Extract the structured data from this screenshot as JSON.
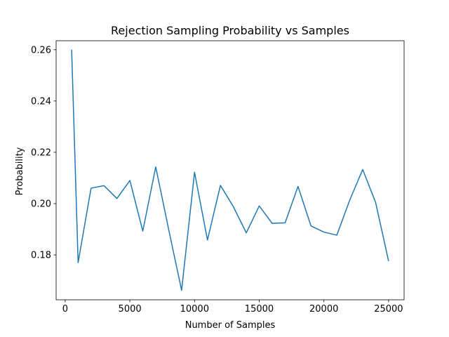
{
  "chart_data": {
    "type": "line",
    "title": "Rejection Sampling Probability vs Samples",
    "xlabel": "Number of Samples",
    "ylabel": "Probability",
    "xlim": [
      -700,
      26200
    ],
    "ylim": [
      0.1625,
      0.2635
    ],
    "xticks": [
      0,
      5000,
      10000,
      15000,
      20000,
      25000
    ],
    "xtick_labels": [
      "0",
      "5000",
      "10000",
      "15000",
      "20000",
      "25000"
    ],
    "yticks": [
      0.18,
      0.2,
      0.22,
      0.24,
      0.26
    ],
    "ytick_labels": [
      "0.18",
      "0.20",
      "0.22",
      "0.24",
      "0.26"
    ],
    "grid": false,
    "series": [
      {
        "color": "#1f77b4",
        "x": [
          500,
          1000,
          2000,
          3000,
          4000,
          5000,
          6000,
          7000,
          8000,
          9000,
          10000,
          11000,
          12000,
          13000,
          14000,
          15000,
          16000,
          17000,
          18000,
          19000,
          20000,
          21000,
          22000,
          23000,
          24000,
          25000
        ],
        "y": [
          0.26,
          0.177,
          0.206,
          0.207,
          0.202,
          0.209,
          0.1893,
          0.2143,
          0.1899,
          0.1662,
          0.2122,
          0.1858,
          0.2071,
          0.1988,
          0.1886,
          0.1991,
          0.1923,
          0.1925,
          0.2067,
          0.1913,
          0.1889,
          0.1877,
          0.2014,
          0.2133,
          0.2004,
          0.1776
        ]
      }
    ]
  }
}
